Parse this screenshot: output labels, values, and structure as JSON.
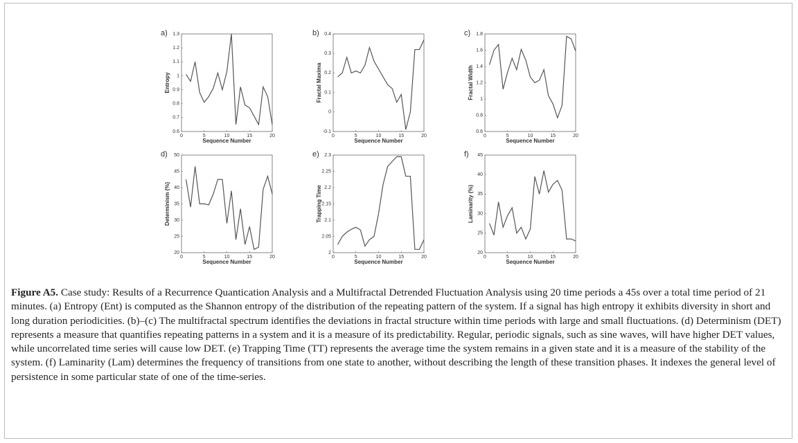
{
  "chart_data": [
    {
      "type": "line",
      "panel": "a)",
      "ylabel": "Entropy",
      "xlabel": "Sequence Number",
      "color": "#555555",
      "x": [
        1,
        2,
        3,
        4,
        5,
        6,
        7,
        8,
        9,
        10,
        11,
        12,
        13,
        14,
        15,
        16,
        17,
        18,
        19,
        20
      ],
      "values": [
        1.01,
        0.96,
        1.1,
        0.88,
        0.81,
        0.85,
        0.91,
        1.02,
        0.9,
        1.03,
        1.3,
        0.65,
        0.92,
        0.79,
        0.77,
        0.71,
        0.65,
        0.92,
        0.85,
        0.65
      ],
      "xlim": [
        0,
        20
      ],
      "xticks": [
        0,
        5,
        10,
        15,
        20
      ],
      "ylim": [
        0.6,
        1.3
      ],
      "yticks": [
        0.6,
        0.7,
        0.8,
        0.9,
        1,
        1.1,
        1.2,
        1.3
      ]
    },
    {
      "type": "line",
      "panel": "b)",
      "ylabel": "Fractal Maxima",
      "xlabel": "Sequence Number",
      "color": "#555555",
      "x": [
        1,
        2,
        3,
        4,
        5,
        6,
        7,
        8,
        9,
        10,
        11,
        12,
        13,
        14,
        15,
        16,
        17,
        18,
        19,
        20
      ],
      "values": [
        0.18,
        0.2,
        0.28,
        0.2,
        0.21,
        0.2,
        0.24,
        0.33,
        0.26,
        0.22,
        0.18,
        0.14,
        0.12,
        0.05,
        0.09,
        -0.09,
        0.0,
        0.32,
        0.32,
        0.37
      ],
      "xlim": [
        0,
        20
      ],
      "xticks": [
        0,
        5,
        10,
        15,
        20
      ],
      "ylim": [
        -0.1,
        0.4
      ],
      "yticks": [
        -0.1,
        0,
        0.1,
        0.2,
        0.3,
        0.4
      ]
    },
    {
      "type": "line",
      "panel": "c)",
      "ylabel": "Fractal Width",
      "xlabel": "Sequence Number",
      "color": "#555555",
      "x": [
        1,
        2,
        3,
        4,
        5,
        6,
        7,
        8,
        9,
        10,
        11,
        12,
        13,
        14,
        15,
        16,
        17,
        18,
        19,
        20
      ],
      "values": [
        1.42,
        1.6,
        1.67,
        1.12,
        1.33,
        1.5,
        1.36,
        1.61,
        1.48,
        1.27,
        1.2,
        1.23,
        1.36,
        1.04,
        0.94,
        0.77,
        0.92,
        1.77,
        1.74,
        1.59
      ],
      "xlim": [
        0,
        20
      ],
      "xticks": [
        0,
        5,
        10,
        15,
        20
      ],
      "ylim": [
        0.6,
        1.8
      ],
      "yticks": [
        0.6,
        0.8,
        1,
        1.2,
        1.4,
        1.6,
        1.8
      ]
    },
    {
      "type": "line",
      "panel": "d)",
      "ylabel": "Determinism (%)",
      "xlabel": "Sequence Number",
      "color": "#555555",
      "x": [
        1,
        2,
        3,
        4,
        5,
        6,
        7,
        8,
        9,
        10,
        11,
        12,
        13,
        14,
        15,
        16,
        17,
        18,
        19,
        20
      ],
      "values": [
        42.5,
        34,
        46.5,
        35,
        35,
        34.7,
        38,
        42.5,
        42.5,
        29,
        39,
        24,
        33.5,
        22.5,
        28,
        21,
        21.7,
        39.5,
        43.5,
        38
      ],
      "xlim": [
        0,
        20
      ],
      "xticks": [
        0,
        5,
        10,
        15,
        20
      ],
      "ylim": [
        20,
        50
      ],
      "yticks": [
        20,
        25,
        30,
        35,
        40,
        45,
        50
      ]
    },
    {
      "type": "line",
      "panel": "e)",
      "ylabel": "Trapping Time",
      "xlabel": "Sequence Number",
      "color": "#555555",
      "x": [
        1,
        2,
        3,
        4,
        5,
        6,
        7,
        8,
        9,
        10,
        11,
        12,
        13,
        14,
        15,
        16,
        17,
        18,
        19,
        20
      ],
      "values": [
        2.025,
        2.05,
        2.063,
        2.072,
        2.078,
        2.07,
        2.02,
        2.04,
        2.05,
        2.12,
        2.21,
        2.265,
        2.28,
        2.295,
        2.295,
        2.235,
        2.235,
        2.01,
        2.01,
        2.04
      ],
      "xlim": [
        0,
        20
      ],
      "xticks": [
        0,
        5,
        10,
        15,
        20
      ],
      "ylim": [
        2,
        2.3
      ],
      "yticks": [
        2,
        2.05,
        2.1,
        2.15,
        2.2,
        2.25,
        2.3
      ]
    },
    {
      "type": "line",
      "panel": "f)",
      "ylabel": "Laminarity (%)",
      "xlabel": "Sequence Number",
      "color": "#555555",
      "x": [
        1,
        2,
        3,
        4,
        5,
        6,
        7,
        8,
        9,
        10,
        11,
        12,
        13,
        14,
        15,
        16,
        17,
        18,
        19,
        20
      ],
      "values": [
        27.5,
        24.5,
        33,
        26.5,
        29.5,
        31.5,
        25,
        26.5,
        23.5,
        26,
        39.5,
        35,
        41,
        35.5,
        37.5,
        38.5,
        36,
        23.5,
        23.5,
        23
      ],
      "xlim": [
        0,
        20
      ],
      "xticks": [
        0,
        5,
        10,
        15,
        20
      ],
      "ylim": [
        20,
        45
      ],
      "yticks": [
        20,
        25,
        30,
        35,
        40,
        45
      ]
    }
  ],
  "caption": {
    "label": "Figure A5.",
    "text": "Case study: Results of a Recurrence Quantication Analysis and a Multifractal Detrended Fluctuation Analysis using 20 time periods a 45s over a total time period of 21 minutes. (a) Entropy (Ent) is computed as the Shannon entropy of the distribution of the repeating pattern of the system. If a signal has high entropy it exhibits diversity in short and long duration periodicities. (b)–(c) The multifractal spectrum identifies the deviations in fractal structure within time periods with large and small fluctuations. (d) Determinism (DET) represents a measure that quantifies repeating patterns in a system and it is a measure of its predictability. Regular, periodic signals, such as sine waves, will have higher DET values, while uncorrelated time series will cause low DET. (e) Trapping Time (TT) represents the average time the system remains in a given state and it is a measure of the stability of the system. (f) Laminarity (Lam) determines the frequency of transitions from one state to another, without describing the length of these transition phases. It indexes the general level of persistence in some particular state of one of the time-series."
  }
}
